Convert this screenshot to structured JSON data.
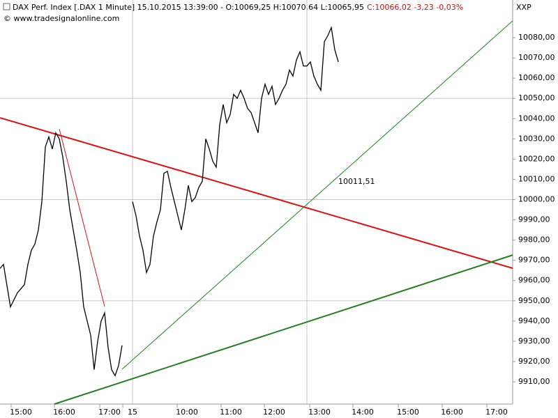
{
  "chart_data": {
    "type": "line",
    "title": "DAX Perf. Index [.DAX  1 Minute] 15.10.2015 13:39:00 - O:10069,25 H:10070,64 L:10065,95",
    "title_change": "C:10066,02 -3,23 -0,03%",
    "subtitle": "© www.tradesignalonline.com",
    "corner_label": "XXP",
    "annotation": "10011,51",
    "annotation_color": "#208020",
    "x": [
      0,
      5,
      15,
      25,
      35,
      40,
      45,
      50,
      55,
      60,
      65,
      70,
      75,
      80,
      85,
      90,
      95,
      100,
      105,
      110,
      115,
      120,
      125,
      130,
      135,
      140,
      145,
      150,
      155,
      160,
      165,
      170,
      175,
      182,
      190,
      195,
      200,
      205,
      210,
      215,
      220,
      225,
      230,
      235,
      240,
      245,
      250,
      255,
      260,
      265,
      270,
      275,
      280,
      285,
      290,
      295,
      300,
      305,
      310,
      315,
      320,
      325,
      330,
      335,
      340,
      345,
      350,
      355,
      360,
      365,
      370,
      375,
      380,
      385,
      390,
      395,
      400,
      405,
      410,
      415,
      420,
      425,
      430,
      435,
      440,
      445,
      450,
      455,
      460,
      465,
      470,
      475,
      480,
      485
    ],
    "series": [
      {
        "name": "DAX",
        "color": "#000000",
        "values": [
          9966,
          9968,
          9947,
          9954,
          9958,
          9968,
          9975,
          9978,
          9985,
          9999,
          10026,
          10031,
          10025,
          10033,
          10030,
          10021,
          10009,
          9995,
          9985,
          9975,
          9964,
          9947,
          9940,
          9933,
          9916,
          9930,
          9940,
          9944,
          9927,
          9916,
          9913,
          9918,
          9928,
          null,
          9999,
          9992,
          9982,
          9975,
          9964,
          9968,
          9982,
          9989,
          9995,
          10013,
          10014,
          10006,
          9999,
          9992,
          9985,
          9995,
          10007,
          9999,
          10001,
          10006,
          10009,
          10030,
          10025,
          10019,
          10016,
          10037,
          10047,
          10038,
          10042,
          10052,
          10050,
          10054,
          10050,
          10045,
          10043,
          10038,
          10033,
          10050,
          10057,
          10052,
          10056,
          10047,
          10050,
          10054,
          10057,
          10064,
          10061,
          10069,
          10073,
          10066,
          10066,
          10068,
          10061,
          10057,
          10054,
          10078,
          10081,
          10085,
          10074,
          10068
        ]
      }
    ],
    "lines": [
      {
        "color": "#e01010",
        "x": [
          0,
          735
        ],
        "y": [
          10040.4,
          9966.1
        ]
      },
      {
        "color": "#e01010",
        "x": [
          85,
          150
        ],
        "y": [
          10034.9,
          9947.2
        ]
      },
      {
        "color": "#208020",
        "x": [
          175,
          735
        ],
        "y": [
          9916.2,
          10088.3
        ]
      },
      {
        "color": "#208020",
        "x": [
          78,
          735
        ],
        "y": [
          9899,
          9972.6
        ]
      }
    ],
    "xlim": [
      0,
      735
    ],
    "xticks": [
      {
        "value": 30,
        "label": "15:00"
      },
      {
        "value": 92,
        "label": "16:00"
      },
      {
        "value": 157,
        "label": "17:00"
      },
      {
        "value": 190,
        "label": "15"
      },
      {
        "value": 268,
        "label": "10:00"
      },
      {
        "value": 331,
        "label": "11:00"
      },
      {
        "value": 393,
        "label": "12:00"
      },
      {
        "value": 458,
        "label": "13:00"
      },
      {
        "value": 520,
        "label": "14:00"
      },
      {
        "value": 585,
        "label": "15:00"
      },
      {
        "value": 648,
        "label": "16:00"
      },
      {
        "value": 712,
        "label": "17:00"
      }
    ],
    "ylim": [
      9899,
      10098.6
    ],
    "yticks": [
      {
        "value": 9910,
        "label": "9910,00"
      },
      {
        "value": 9920,
        "label": "9920,00"
      },
      {
        "value": 9930,
        "label": "9930,00"
      },
      {
        "value": 9940,
        "label": "9940,00"
      },
      {
        "value": 9950,
        "label": "9950,00"
      },
      {
        "value": 9960,
        "label": "9960,00"
      },
      {
        "value": 9970,
        "label": "9970,00"
      },
      {
        "value": 9980,
        "label": "9980,00"
      },
      {
        "value": 9990,
        "label": "9990,00"
      },
      {
        "value": 10000,
        "label": "10000,00"
      },
      {
        "value": 10010,
        "label": "10010,00"
      },
      {
        "value": 10020,
        "label": "10020,00"
      },
      {
        "value": 10030,
        "label": "10030,00"
      },
      {
        "value": 10040,
        "label": "10040,00"
      },
      {
        "value": 10050,
        "label": "10050,00"
      },
      {
        "value": 10060,
        "label": "10060,00"
      },
      {
        "value": 10070,
        "label": "10070,00"
      },
      {
        "value": 10080,
        "label": "10080,00"
      }
    ],
    "grid_y": [
      9950,
      10000,
      10050
    ],
    "grid_x": [
      190,
      440
    ]
  }
}
